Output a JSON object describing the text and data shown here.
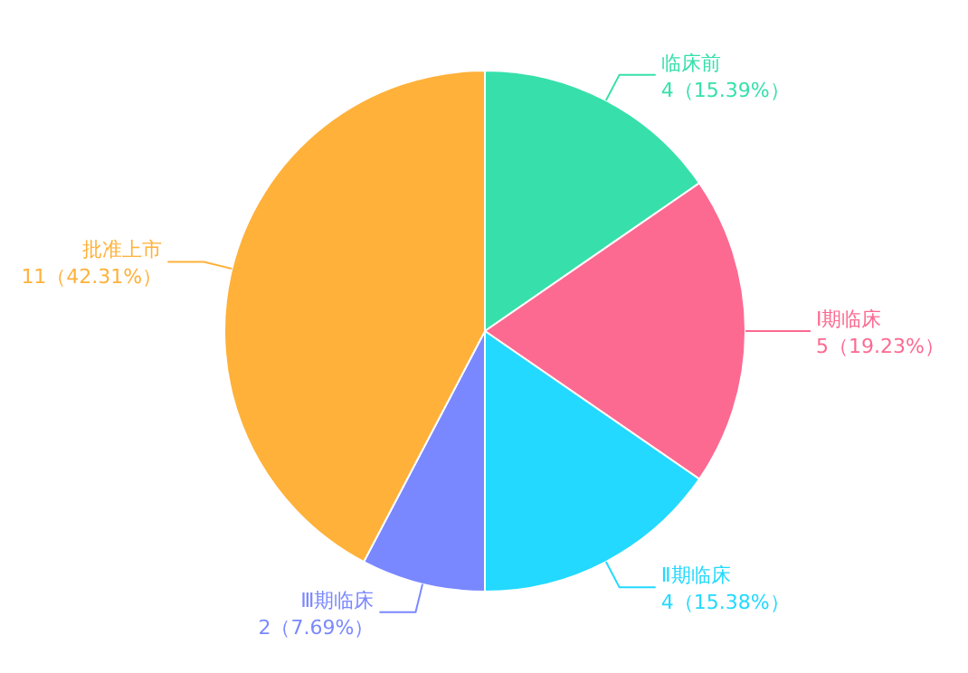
{
  "chart_data": {
    "type": "pie",
    "categories": [
      "临床前",
      "Ⅰ期临床",
      "Ⅱ期临床",
      "Ⅲ期临床",
      "批准上市"
    ],
    "values": [
      4,
      5,
      4,
      2,
      11
    ],
    "value_labels": [
      "4（15.39%）",
      "5（19.23%）",
      "4（15.38%）",
      "2（7.69%）",
      "11（42.31%）"
    ],
    "colors": [
      "#37e0aa",
      "#fc6a91",
      "#23d9ff",
      "#7a88ff",
      "#ffb13a"
    ]
  }
}
